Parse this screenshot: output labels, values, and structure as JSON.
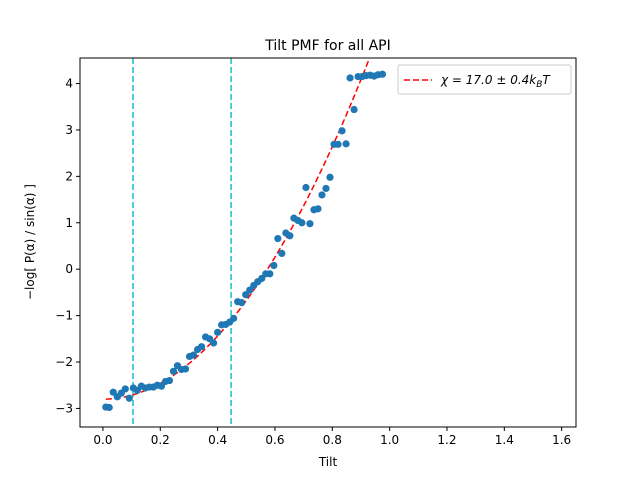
{
  "chart_data": {
    "type": "scatter",
    "title": "Tilt PMF for all API",
    "xlabel": "Tilt",
    "ylabel": "−log[ P(α) / sin(α) ]",
    "xlim": [
      -0.08,
      1.65
    ],
    "ylim": [
      -3.4,
      4.55
    ],
    "xticks": [
      0.0,
      0.2,
      0.4,
      0.6,
      0.8,
      1.0,
      1.2,
      1.4,
      1.6
    ],
    "xtick_labels": [
      "0.0",
      "0.2",
      "0.4",
      "0.6",
      "0.8",
      "1.0",
      "1.2",
      "1.4",
      "1.6"
    ],
    "yticks": [
      -3,
      -2,
      -1,
      0,
      1,
      2,
      3,
      4
    ],
    "ytick_labels": [
      "−3",
      "−2",
      "−1",
      "0",
      "1",
      "2",
      "3",
      "4"
    ],
    "grid": false,
    "legend_position": "top-right",
    "vlines": [
      {
        "x": 0.105,
        "color": "#17becf"
      },
      {
        "x": 0.447,
        "color": "#17becf"
      }
    ],
    "fit": {
      "label": "χ = 17.0 ± 0.4k_B T",
      "label_text": "χ = 17.0 ± 0.4",
      "label_k": "k",
      "label_sub": "B",
      "label_T": "T",
      "color": "#ff0000",
      "x_start": 0.01,
      "x_end": 1.0,
      "y_offset": -2.8,
      "coefficient": 8.5
    },
    "series": [
      {
        "color": "#1f77b4",
        "x": [
          0.01,
          0.022,
          0.036,
          0.05,
          0.064,
          0.078,
          0.092,
          0.106,
          0.12,
          0.134,
          0.148,
          0.162,
          0.176,
          0.19,
          0.204,
          0.218,
          0.232,
          0.246,
          0.26,
          0.274,
          0.288,
          0.302,
          0.316,
          0.33,
          0.344,
          0.358,
          0.372,
          0.386,
          0.4,
          0.414,
          0.428,
          0.442,
          0.456,
          0.47,
          0.484,
          0.498,
          0.512,
          0.526,
          0.54,
          0.554,
          0.568,
          0.582,
          0.596,
          0.61,
          0.624,
          0.638,
          0.652,
          0.666,
          0.68,
          0.694,
          0.708,
          0.722,
          0.736,
          0.75,
          0.764,
          0.778,
          0.792,
          0.806,
          0.82,
          0.834,
          0.848,
          0.862,
          0.876,
          0.89,
          0.904,
          0.918,
          0.932,
          0.946,
          0.96,
          0.975
        ],
        "y": [
          -2.97,
          -2.98,
          -2.65,
          -2.75,
          -2.67,
          -2.58,
          -2.78,
          -2.56,
          -2.61,
          -2.52,
          -2.56,
          -2.54,
          -2.54,
          -2.5,
          -2.52,
          -2.42,
          -2.4,
          -2.2,
          -2.08,
          -2.16,
          -2.15,
          -1.88,
          -1.85,
          -1.73,
          -1.67,
          -1.46,
          -1.5,
          -1.59,
          -1.36,
          -1.2,
          -1.19,
          -1.14,
          -1.06,
          -0.7,
          -0.72,
          -0.55,
          -0.45,
          -0.35,
          -0.27,
          -0.2,
          -0.1,
          -0.1,
          0.08,
          0.66,
          0.34,
          0.78,
          0.72,
          1.1,
          1.05,
          1.0,
          1.76,
          0.98,
          1.28,
          1.3,
          1.6,
          1.74,
          1.98,
          2.69,
          2.69,
          2.98,
          2.7,
          4.12,
          3.44,
          4.15,
          4.15,
          4.17,
          4.18,
          4.16,
          4.19,
          4.2
        ]
      }
    ]
  }
}
